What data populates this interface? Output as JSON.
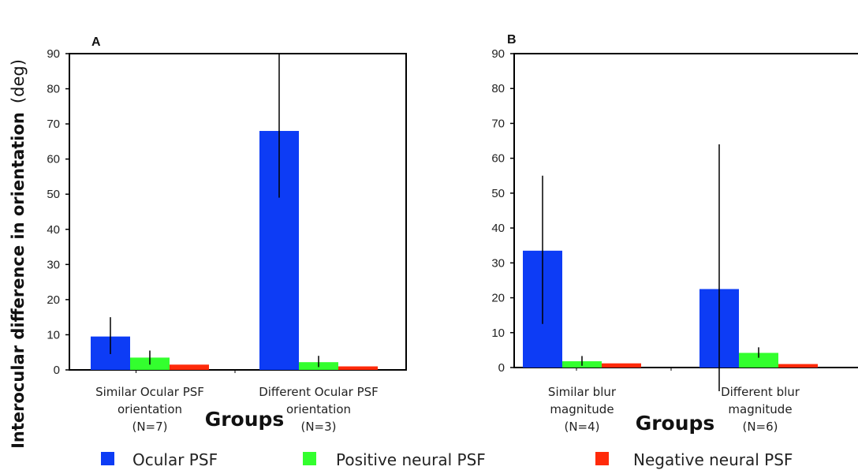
{
  "ylabel": {
    "main": "Interocular difference in orientation",
    "unit": "(deg)"
  },
  "legend": [
    {
      "label": "Ocular PSF",
      "color": "#0d3cf5"
    },
    {
      "label": "Positive neural PSF",
      "color": "#33ff2e"
    },
    {
      "label": "Negative neural PSF",
      "color": "#ff2a0a"
    }
  ],
  "chart_data": [
    {
      "type": "bar",
      "panel": "A",
      "xlabel": "Groups",
      "ylim": [
        0,
        90
      ],
      "yticks": [
        0,
        10,
        20,
        30,
        40,
        50,
        60,
        70,
        80,
        90
      ],
      "categories": [
        [
          "Similar Ocular PSF",
          "orientation",
          "(N=7)"
        ],
        [
          "Different Ocular PSF",
          "orientation",
          "(N=3)"
        ]
      ],
      "series": [
        {
          "name": "Ocular PSF",
          "values": [
            9.5,
            68
          ],
          "err_low": [
            4.5,
            49
          ],
          "err_high": [
            15,
            90
          ]
        },
        {
          "name": "Positive neural PSF",
          "values": [
            3.5,
            2.2
          ],
          "err_low": [
            1.5,
            0.8
          ],
          "err_high": [
            5.5,
            4
          ]
        },
        {
          "name": "Negative neural PSF",
          "values": [
            1.5,
            1
          ],
          "err_low": [
            1.5,
            1
          ],
          "err_high": [
            1.5,
            1
          ]
        }
      ]
    },
    {
      "type": "bar",
      "panel": "B",
      "xlabel": "Groups",
      "ylim": [
        0,
        90
      ],
      "yticks": [
        0,
        10,
        20,
        30,
        40,
        50,
        60,
        70,
        80,
        90
      ],
      "categories": [
        [
          "Similar blur",
          "magnitude",
          "(N=4)"
        ],
        [
          "Different blur",
          "magnitude",
          "(N=6)"
        ]
      ],
      "series": [
        {
          "name": "Ocular PSF",
          "values": [
            33.5,
            22.5
          ],
          "err_low": [
            12.5,
            -8
          ],
          "err_high": [
            55,
            64
          ]
        },
        {
          "name": "Positive neural PSF",
          "values": [
            1.8,
            4.2
          ],
          "err_low": [
            0.5,
            2.8
          ],
          "err_high": [
            3.3,
            5.8
          ]
        },
        {
          "name": "Negative neural PSF",
          "values": [
            1.2,
            1
          ],
          "err_low": [
            1.2,
            1
          ],
          "err_high": [
            1.2,
            1
          ]
        }
      ]
    }
  ]
}
